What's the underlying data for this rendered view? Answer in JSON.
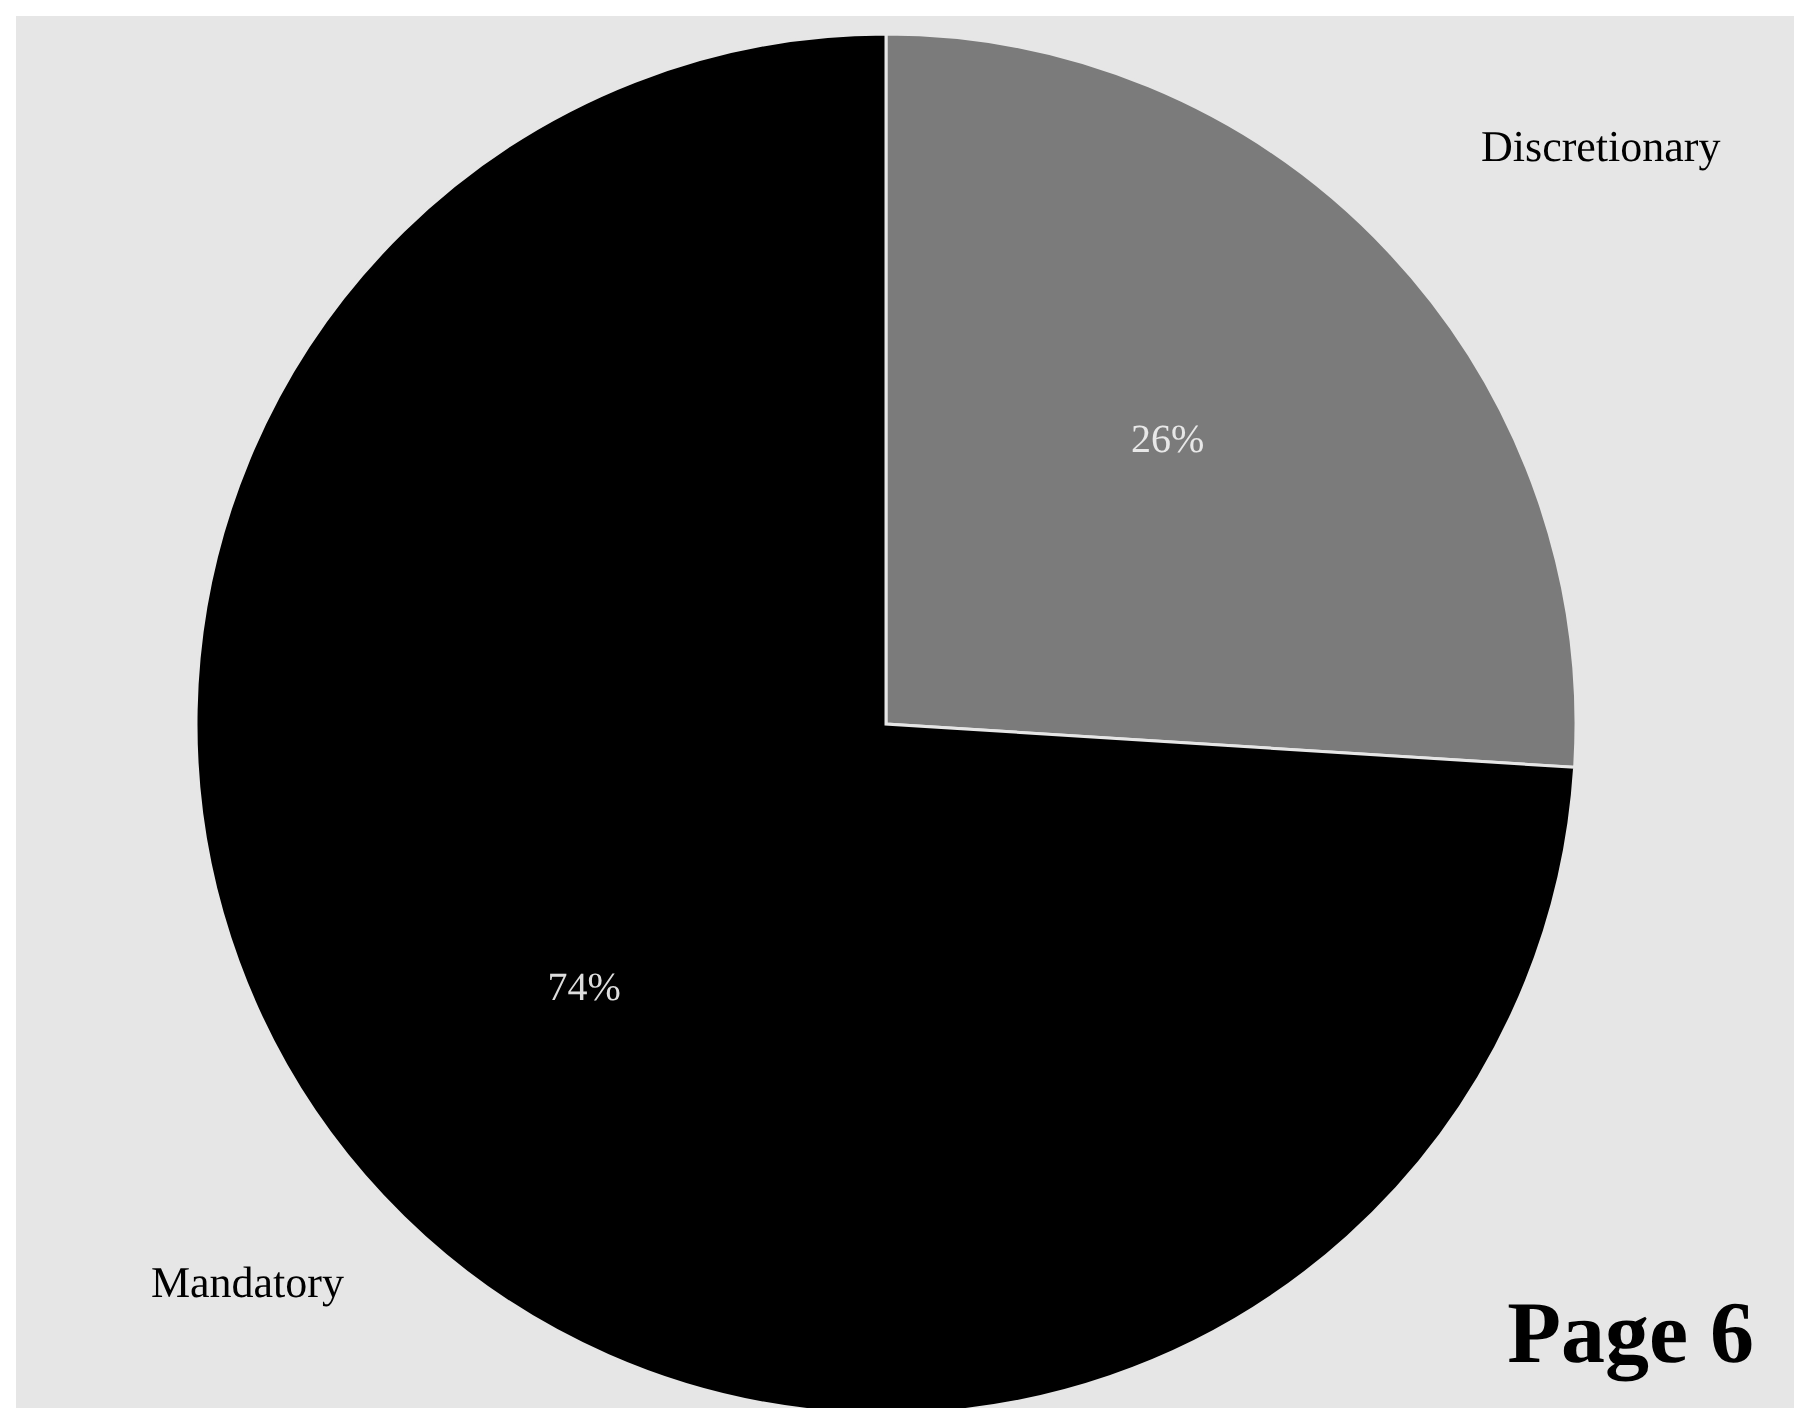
{
  "chart_data": {
    "type": "pie",
    "categories": [
      "Discretionary",
      "Mandatory"
    ],
    "values": [
      26,
      74
    ],
    "colors": [
      "#7b7b7b",
      "#000000"
    ],
    "value_labels": [
      "26%",
      "74%"
    ],
    "annotations": [
      "Page 6"
    ]
  }
}
